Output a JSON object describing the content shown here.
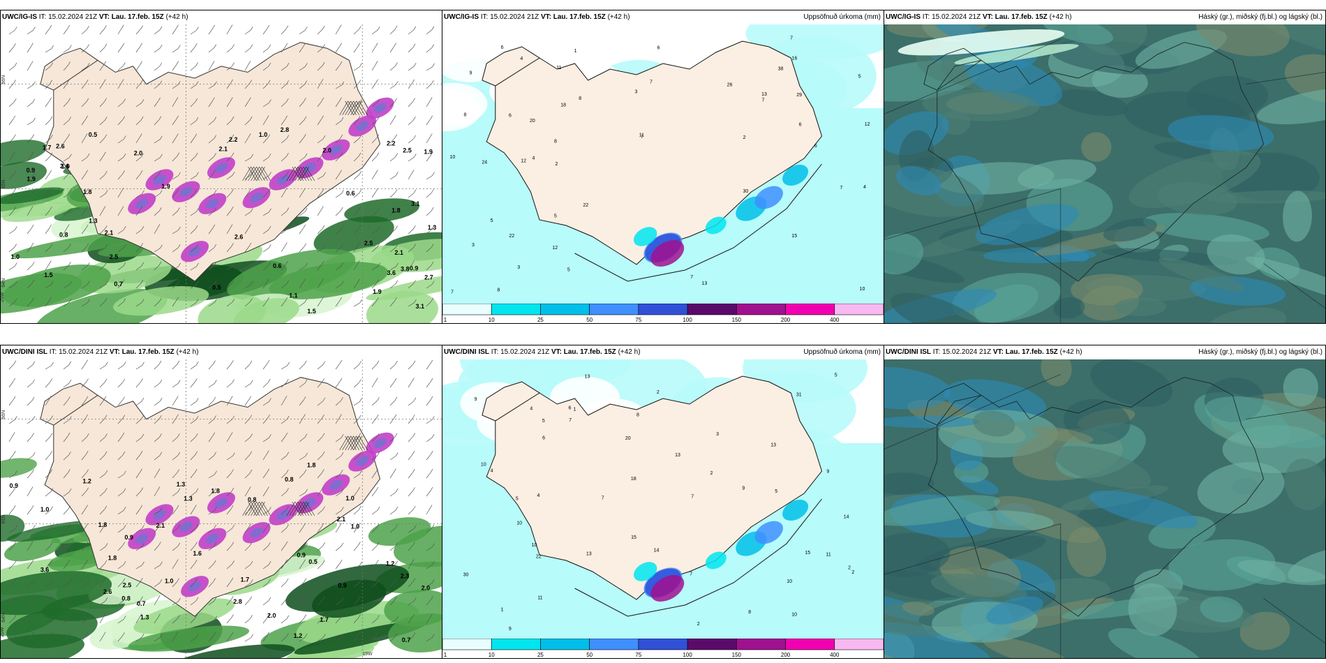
{
  "panels": [
    {
      "id": "p1",
      "kind": "wind",
      "model": "UWC/IG-IS",
      "it_label": "IT:",
      "it_value": "15.02.2024 21Z",
      "vt_label": "VT:",
      "vt_value": "Lau. 17.feb. 15Z",
      "lead": "(+42 h)",
      "right_title": "",
      "values": [
        "0.5",
        "1.1",
        "0.8",
        "0.5",
        "0.6",
        "0.9",
        "1.3",
        "0.6",
        "0.9",
        "2.5",
        "2.2",
        "1.3",
        "0.7",
        "1.0",
        "1.5",
        "1.9",
        "2.5",
        "3.1",
        "1.8",
        "2.0",
        "1.8",
        "2.1",
        "2.6",
        "1.9",
        "2.8",
        "2.7",
        "2.2",
        "2.1",
        "1.9",
        "1.7",
        "2.4",
        "1.9",
        "2.1",
        "2.5",
        "3.1",
        "2.0",
        "1.0",
        "1.0",
        "3.6",
        "3.8",
        "2.6",
        "1.5"
      ],
      "lon_labels": [
        "25W"
      ],
      "lat_labels": [
        "66N",
        "65N",
        "64N"
      ]
    },
    {
      "id": "p2",
      "kind": "precip",
      "model": "UWC/IG-IS",
      "it_label": "IT:",
      "it_value": "15.02.2024 21Z",
      "vt_label": "VT:",
      "vt_value": "Lau. 17.feb. 15Z",
      "lead": "(+42 h)",
      "right_title": "Uppsöfnuð úrkoma (mm)",
      "values": [
        "4",
        "2",
        "5",
        "3",
        "4",
        "6",
        "10",
        "13",
        "5",
        "3",
        "8",
        "7",
        "6",
        "4",
        "6",
        "7",
        "7",
        "7",
        "11",
        "5",
        "3",
        "13",
        "22",
        "24",
        "29",
        "26",
        "16",
        "18",
        "12",
        "12",
        "8",
        "7",
        "7",
        "8",
        "6",
        "5",
        "20",
        "10",
        "11",
        "15",
        "38",
        "30",
        "22",
        "12",
        "9",
        "8",
        "2",
        "6",
        "1",
        "7"
      ],
      "colorbar": {
        "labels": [
          "1",
          "10",
          "25",
          "50",
          "75",
          "100",
          "150",
          "200",
          "400"
        ],
        "colors": [
          "#e9ffff",
          "#00e5ee",
          "#00bfe8",
          "#3f8fff",
          "#3050d8",
          "#5a0a6a",
          "#a0108f",
          "#f000b0",
          "#f8b8f0"
        ]
      }
    },
    {
      "id": "p3",
      "kind": "cloud",
      "model": "UWC/IG-IS",
      "it_label": "IT:",
      "it_value": "15.02.2024 21Z",
      "vt_label": "VT:",
      "vt_value": "Lau. 17.feb. 15Z",
      "lead": "(+42 h)",
      "right_title": "Háský (gr.), miðský (fj.bl.) og lágský (bl.)"
    },
    {
      "id": "p4",
      "kind": "wind",
      "model": "UWC/DINI ISL",
      "it_label": "IT:",
      "it_value": "15.02.2024 21Z",
      "vt_label": "VT:",
      "vt_value": "Lau. 17.feb. 15Z",
      "lead": "(+42 h)",
      "right_title": "",
      "values": [
        "1.0",
        "1.3",
        "1.2",
        "1.0",
        "0.9",
        "0.8",
        "2.6",
        "1.8",
        "1.7",
        "1.3",
        "2.1",
        "1.8",
        "1.8",
        "1.2",
        "1.8",
        "1.6",
        "1.7",
        "0.8",
        "0.7",
        "0.7",
        "2.0",
        "2.8",
        "2.5",
        "0.9",
        "0.8",
        "0.9",
        "0.5",
        "1.0",
        "1.2",
        "1.3",
        "0.9",
        "2.1",
        "3.6",
        "2.0",
        "2.3",
        "1.0"
      ],
      "lon_labels": [
        "25W",
        "15W"
      ],
      "lat_labels": [
        "66N",
        "65N",
        "64N"
      ]
    },
    {
      "id": "p5",
      "kind": "precip",
      "model": "UWC/DINI ISL",
      "it_label": "IT:",
      "it_value": "15.02.2024 21Z",
      "vt_label": "VT:",
      "vt_value": "Lau. 17.feb. 15Z",
      "lead": "(+42 h)",
      "right_title": "Uppsöfnuð úrkoma (mm)",
      "values": [
        "1",
        "2",
        "2",
        "4",
        "5",
        "5",
        "3",
        "4",
        "2",
        "2",
        "5",
        "1",
        "2",
        "4",
        "9",
        "7",
        "7",
        "13",
        "13",
        "6",
        "7",
        "8",
        "10",
        "10",
        "15",
        "18",
        "31",
        "30",
        "13",
        "14",
        "15",
        "11",
        "14",
        "22",
        "20",
        "10",
        "8",
        "7",
        "6",
        "9",
        "9",
        "10",
        "11",
        "13",
        "9",
        "5",
        "10"
      ],
      "colorbar": {
        "labels": [
          "1",
          "10",
          "25",
          "50",
          "75",
          "100",
          "150",
          "200",
          "400"
        ],
        "colors": [
          "#e9ffff",
          "#00e5ee",
          "#00bfe8",
          "#3f8fff",
          "#3050d8",
          "#5a0a6a",
          "#a0108f",
          "#f000b0",
          "#f8b8f0"
        ]
      }
    },
    {
      "id": "p6",
      "kind": "cloud",
      "model": "UWC/DINI ISL",
      "it_label": "IT:",
      "it_value": "15.02.2024 21Z",
      "vt_label": "VT:",
      "vt_value": "Lau. 17.feb. 15Z",
      "lead": "(+42 h)",
      "right_title": "Háský (gr.), miðský (fj.bl.) og lágský (bl.)"
    }
  ]
}
